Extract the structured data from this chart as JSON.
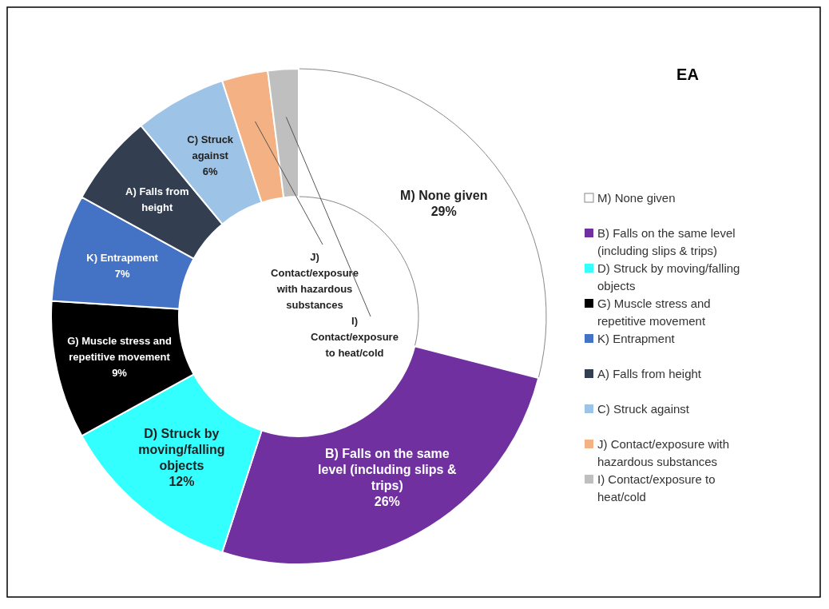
{
  "chart_data": {
    "type": "donut",
    "title": "EA",
    "categories": [
      "M) None given",
      "B) Falls on the same level (including slips & trips)",
      "D) Struck by moving/falling objects",
      "G) Muscle stress and repetitive movement",
      "K) Entrapment",
      "A) Falls from height",
      "C) Struck against",
      "J) Contact/exposure with hazardous substances",
      "I)  Contact/exposure to heat/cold"
    ],
    "values": [
      29,
      26,
      12,
      9,
      7,
      6,
      6,
      3,
      2
    ],
    "value_labels": [
      "29%",
      "26%",
      "12%",
      "9%",
      "7%",
      null,
      "6%",
      null,
      null
    ],
    "colors": [
      "#ffffff",
      "#7030a0",
      "#33ffff",
      "#000000",
      "#4472c4",
      "#333f50",
      "#9dc3e6",
      "#f4b183",
      "#bfbfbf"
    ],
    "legend": "right"
  }
}
